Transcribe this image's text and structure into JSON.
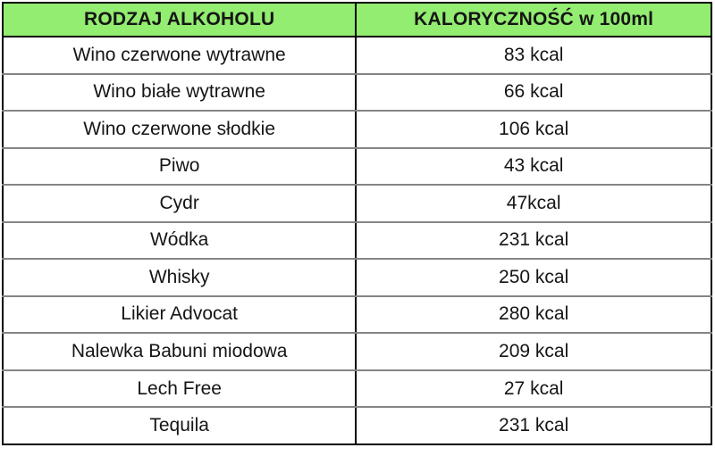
{
  "colors": {
    "header_bg": "#92ed70",
    "outer_border": "#000000",
    "row_divider": "#858585",
    "text": "#151515"
  },
  "table": {
    "header": {
      "col1": "RODZAJ ALKOHOLU",
      "col2": "KALORYCZNOŚĆ w 100ml"
    },
    "rows": [
      {
        "type": "Wino czerwone wytrawne",
        "kcal": "83 kcal"
      },
      {
        "type": "Wino białe wytrawne",
        "kcal": "66 kcal"
      },
      {
        "type": "Wino czerwone słodkie",
        "kcal": "106 kcal"
      },
      {
        "type": "Piwo",
        "kcal": "43 kcal"
      },
      {
        "type": "Cydr",
        "kcal": "47kcal"
      },
      {
        "type": "Wódka",
        "kcal": "231 kcal"
      },
      {
        "type": "Whisky",
        "kcal": "250 kcal"
      },
      {
        "type": "Likier Advocat",
        "kcal": "280 kcal"
      },
      {
        "type": "Nalewka Babuni miodowa",
        "kcal": "209 kcal"
      },
      {
        "type": "Lech Free",
        "kcal": "27 kcal"
      },
      {
        "type": "Tequila",
        "kcal": "231 kcal"
      }
    ]
  }
}
